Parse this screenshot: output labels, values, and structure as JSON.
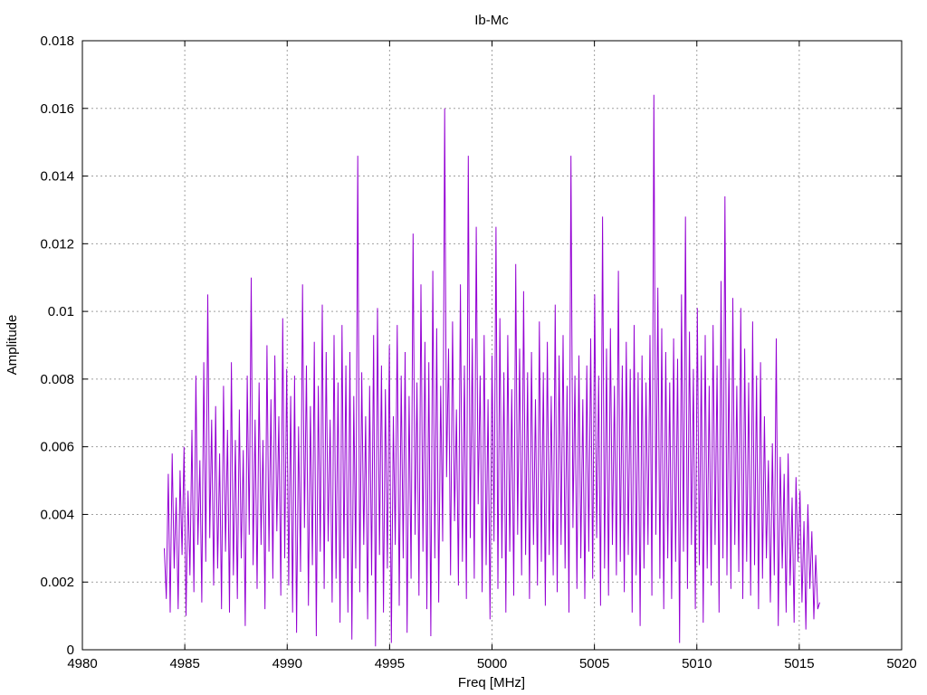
{
  "chart_data": {
    "type": "line",
    "title": "Ib-Mc",
    "xlabel": "Freq [MHz]",
    "ylabel": "Amplitude",
    "xlim": [
      4980,
      5020
    ],
    "ylim": [
      0,
      0.018
    ],
    "xticks": [
      4980,
      4985,
      4990,
      4995,
      5000,
      5005,
      5010,
      5015,
      5020
    ],
    "xtick_labels": [
      "4980",
      "4985",
      "4990",
      "4995",
      "5000",
      "5005",
      "5010",
      "5015",
      "5020"
    ],
    "yticks": [
      0,
      0.002,
      0.004,
      0.006,
      0.008,
      0.01,
      0.012,
      0.014,
      0.016,
      0.018
    ],
    "ytick_labels": [
      "0",
      "0.002",
      "0.004",
      "0.006",
      "0.008",
      "0.01",
      "0.012",
      "0.014",
      "0.016",
      "0.018"
    ],
    "grid": true,
    "legend": "none",
    "colors": {
      "series": "#9400d3",
      "grid": "#a0a0a0",
      "axes": "#000000"
    },
    "series": [
      {
        "x_start": 4984.0,
        "x_end": 5016.0,
        "values": [
          0.003,
          0.0015,
          0.0052,
          0.0011,
          0.0058,
          0.0024,
          0.0045,
          0.0012,
          0.0053,
          0.0028,
          0.006,
          0.001,
          0.0047,
          0.0022,
          0.0065,
          0.0017,
          0.0081,
          0.0031,
          0.0056,
          0.0014,
          0.0085,
          0.0026,
          0.0105,
          0.0033,
          0.0068,
          0.0019,
          0.0072,
          0.0024,
          0.0058,
          0.0012,
          0.0078,
          0.0029,
          0.0065,
          0.0011,
          0.0085,
          0.0022,
          0.0062,
          0.0015,
          0.0071,
          0.0027,
          0.0059,
          0.0007,
          0.0081,
          0.0034,
          0.011,
          0.0025,
          0.0068,
          0.0018,
          0.0079,
          0.0031,
          0.0062,
          0.0012,
          0.009,
          0.0029,
          0.0074,
          0.0021,
          0.0087,
          0.0035,
          0.0069,
          0.0016,
          0.0098,
          0.0027,
          0.0083,
          0.0019,
          0.0075,
          0.0011,
          0.0081,
          0.0005,
          0.0066,
          0.0023,
          0.0108,
          0.0036,
          0.0084,
          0.0013,
          0.0072,
          0.0025,
          0.0091,
          0.0004,
          0.0078,
          0.0029,
          0.0102,
          0.0018,
          0.0088,
          0.0032,
          0.0068,
          0.0014,
          0.0093,
          0.0021,
          0.0079,
          0.0008,
          0.0096,
          0.0027,
          0.0084,
          0.0011,
          0.0088,
          0.0003,
          0.0075,
          0.0024,
          0.0146,
          0.0017,
          0.0082,
          0.0031,
          0.0069,
          0.0009,
          0.0078,
          0.0022,
          0.0093,
          0.0001,
          0.0101,
          0.0028,
          0.0084,
          0.0011,
          0.0077,
          0.0024,
          0.009,
          0.0002,
          0.0069,
          0.0031,
          0.0096,
          0.0013,
          0.0081,
          0.0027,
          0.0088,
          0.0005,
          0.0075,
          0.0021,
          0.0123,
          0.0034,
          0.0079,
          0.0016,
          0.0108,
          0.0029,
          0.0091,
          0.0012,
          0.0085,
          0.0004,
          0.0112,
          0.0027,
          0.0095,
          0.0014,
          0.0078,
          0.0032,
          0.016,
          0.0051,
          0.0089,
          0.0022,
          0.0097,
          0.0038,
          0.0071,
          0.0019,
          0.0108,
          0.0026,
          0.0084,
          0.0015,
          0.0146,
          0.0033,
          0.0092,
          0.0021,
          0.0125,
          0.0043,
          0.0081,
          0.0017,
          0.0093,
          0.0025,
          0.0074,
          0.0009,
          0.0087,
          0.0032,
          0.0125,
          0.0018,
          0.0098,
          0.0027,
          0.0082,
          0.0011,
          0.0093,
          0.0029,
          0.0077,
          0.0016,
          0.0114,
          0.0034,
          0.0089,
          0.0022,
          0.0106,
          0.0028,
          0.0082,
          0.0015,
          0.0088,
          0.0031,
          0.0074,
          0.0019,
          0.0097,
          0.0026,
          0.0082,
          0.0013,
          0.0091,
          0.0028,
          0.0075,
          0.0022,
          0.0102,
          0.0017,
          0.0087,
          0.0031,
          0.0093,
          0.0024,
          0.0078,
          0.0011,
          0.0146,
          0.0036,
          0.0081,
          0.0018,
          0.0087,
          0.0027,
          0.0074,
          0.0015,
          0.0084,
          0.0029,
          0.0092,
          0.0021,
          0.0105,
          0.0033,
          0.0081,
          0.0013,
          0.0128,
          0.0024,
          0.0089,
          0.0016,
          0.0095,
          0.0031,
          0.0078,
          0.0022,
          0.0112,
          0.0026,
          0.0084,
          0.0017,
          0.0091,
          0.0028,
          0.0083,
          0.0011,
          0.0096,
          0.0022,
          0.0082,
          0.0007,
          0.0087,
          0.0024,
          0.0079,
          0.0031,
          0.0093,
          0.0016,
          0.0164,
          0.0034,
          0.0107,
          0.0021,
          0.0095,
          0.0012,
          0.0088,
          0.0027,
          0.0079,
          0.0015,
          0.0092,
          0.0026,
          0.0086,
          0.0002,
          0.0105,
          0.0029,
          0.0128,
          0.0018,
          0.0094,
          0.0031,
          0.0083,
          0.0012,
          0.0101,
          0.0025,
          0.0087,
          0.0008,
          0.0093,
          0.0024,
          0.0078,
          0.0019,
          0.0096,
          0.0031,
          0.0084,
          0.0011,
          0.0109,
          0.0027,
          0.0134,
          0.0022,
          0.0086,
          0.0018,
          0.0104,
          0.0031,
          0.0078,
          0.0023,
          0.0101,
          0.0015,
          0.0089,
          0.0026,
          0.0079,
          0.0016,
          0.0097,
          0.0025,
          0.0081,
          0.0012,
          0.0085,
          0.0021,
          0.0069,
          0.0027,
          0.0056,
          0.0014,
          0.0061,
          0.0022,
          0.0092,
          0.0007,
          0.0057,
          0.0024,
          0.0052,
          0.0011,
          0.0058,
          0.0019,
          0.0045,
          0.0008,
          0.0051,
          0.0026,
          0.0047,
          0.0014,
          0.0038,
          0.0006,
          0.0043,
          0.0018,
          0.0035,
          0.0009,
          0.0028,
          0.0012,
          0.0014
        ]
      }
    ]
  }
}
